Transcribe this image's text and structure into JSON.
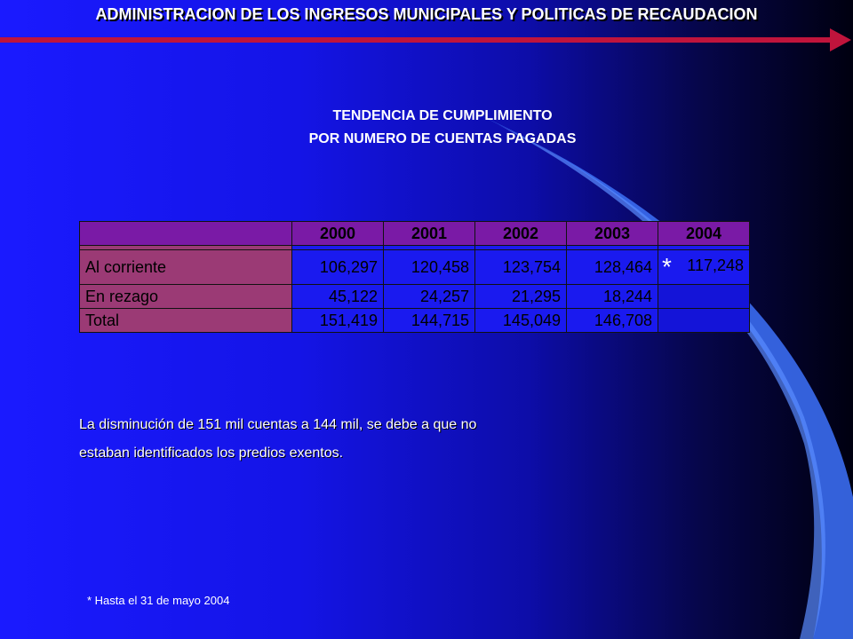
{
  "header": {
    "title": "ADMINISTRACION DE LOS INGRESOS MUNICIPALES Y POLITICAS DE RECAUDACION"
  },
  "subtitle": {
    "line1": "TENDENCIA DE CUMPLIMIENTO",
    "line2": "POR NUMERO DE CUENTAS PAGADAS"
  },
  "table": {
    "years": [
      "2000",
      "2001",
      "2002",
      "2003",
      "2004"
    ],
    "rows": [
      {
        "label": "Al corriente",
        "values": [
          "106,297",
          "120,458",
          "123,754",
          "128,464",
          "117,248"
        ],
        "marker_2004": "*"
      },
      {
        "label": "En rezago",
        "values": [
          "45,122",
          "24,257",
          "21,295",
          "18,244",
          ""
        ]
      },
      {
        "label": "Total",
        "values": [
          "151,419",
          "144,715",
          "145,049",
          "146,708",
          ""
        ]
      }
    ]
  },
  "note": {
    "line1": "La disminución de 151 mil cuentas a 144 mil, se debe a que no",
    "line2": "estaban identificados los predios exentos."
  },
  "footnote": "* Hasta el 31 de mayo 2004",
  "colors": {
    "header_bg": "#7a1aa6",
    "label_bg": "#9b3a75",
    "cell_bg": "#1a1aef",
    "accent_line": "#c0143c"
  }
}
